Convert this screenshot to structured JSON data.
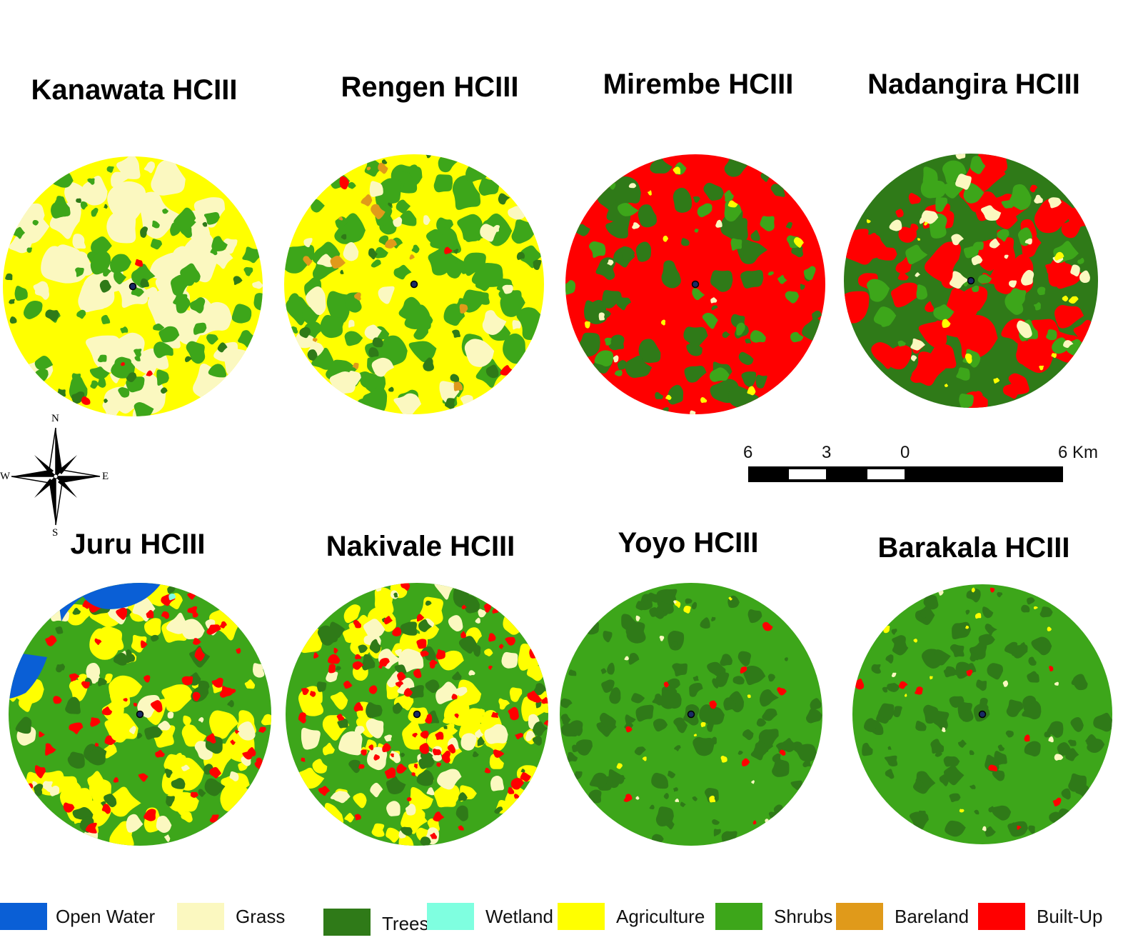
{
  "maps": [
    {
      "title": "Kanawata HCIII",
      "base": "yellow-mix"
    },
    {
      "title": "Rengen HCIII",
      "base": "green-yellow-mix"
    },
    {
      "title": "Mirembe HCIII",
      "base": "built-up"
    },
    {
      "title": "Nadangira HCIII",
      "base": "trees-built-up-mix"
    },
    {
      "title": "Juru HCIII",
      "base": "mixed-with-water"
    },
    {
      "title": "Nakivale HCIII",
      "base": "mixed"
    },
    {
      "title": "Yoyo HCIII",
      "base": "shrubs"
    },
    {
      "title": "Barakala HCIII",
      "base": "shrubs"
    }
  ],
  "legend": [
    {
      "label": "Open Water",
      "color": "#0a5fd6"
    },
    {
      "label": "Grass",
      "color": "#fbf8c0"
    },
    {
      "label": "Trees",
      "color": "#2f7a18"
    },
    {
      "label": "Wetland",
      "color": "#7fffe0"
    },
    {
      "label": "Agriculture",
      "color": "#ffff00"
    },
    {
      "label": "Shrubs",
      "color": "#3da61a"
    },
    {
      "label": "Bareland",
      "color": "#e09a1a"
    },
    {
      "label": "Built-Up",
      "color": "#ff0000"
    }
  ],
  "scale_bar": {
    "labels": [
      "6",
      "3",
      "0",
      "6 Km"
    ]
  },
  "compass": {
    "n": "N",
    "s": "S",
    "e": "E",
    "w": "W"
  }
}
